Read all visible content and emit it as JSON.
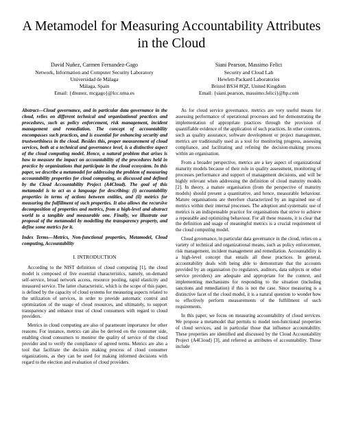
{
  "title": "A Metamodel for Measuring Accountability Attributes in the Cloud",
  "authors": {
    "left": {
      "names": "David Nuñez, Carmen Fernandez-Gago",
      "affiliation1": "Network, Information and Computer Security Laboratory",
      "affiliation2": "Universidad de Málaga",
      "location": "Málaga, Spain",
      "email": "Email: {dnunez, mcgago}@lcc.uma.es"
    },
    "right": {
      "names": "Siani Pearson, Massimo Felici",
      "affiliation1": "Security and Cloud Lab",
      "affiliation2": "Hewlett-Packard Laboratories",
      "location": "Bristol BS34 8QZ, United Kingdom",
      "email": "Email: {siani.pearson, massimo.felici}@hp.com"
    }
  },
  "abstract_label": "Abstract—",
  "abstract": "Cloud governance, and in particular data governance in the cloud, relies on different technical and organizational practices and procedures, such as policy enforcement, risk management, incident management and remediation. The concept of accountability encompasses such practices, and is essential for enhancing security and trustworthiness in the cloud. Besides this, proper measurement of cloud services, both at a technical and governance level, is a distinctive aspect of the cloud computing model. Hence, a natural problem that arises is how to measure the impact on accountability of the procedures held in practice by organizations that participate in the cloud ecosystem. In this paper, we describe a metamodel for addressing the problem of measuring accountability properties for cloud computing, as discussed and defined by the Cloud Accountability Project (A4Cloud). The goal of this metamodel is to act as a language for describing: (i) accountability properties in terms of actions between entities, and (ii) metrics for measuring the fulfillment of such properties. It also allows the recursive decomposition of properties and metrics, from a high-level and abstract world to a tangible and measurable one. Finally, we illustrate our proposal of the metamodel by modelling the transparency property, and define some metrics for it.",
  "index_terms_label": "Index Terms—",
  "index_terms": "Metrics, Non-functional properties, Metamodel, Cloud computing, Accountability",
  "section1_heading": "I.  INTRODUCTION",
  "left_p1": "According to the NIST definition of cloud computing [1], the cloud model is composed of five essential characteristics, namely, on-demand self-service, broad network access, resource pooling, rapid elasticity and measured service. The latter characteristic, which is the scope of this paper, is defined by the capacity of cloud systems for measuring aspects related to the utilization of services, in order to provide automatic control and optimization of the usage of cloud resources, and ultimately, to support transparency and enhance trust of cloud consumers with regard to cloud providers.",
  "left_p2": "Metrics in cloud computing are also of paramount importance for other reasons. For instance, metrics can also be derived on the consumer side, enabling cloud consumers to monitor the quality of service of the cloud provider and to verify the compliance of agreed terms. Metrics are also a tool that facilitate the decision making process of cloud consumer organizations, as they can be used for making informed decisions with regard to the election and evaluation of cloud providers.",
  "right_p1": "As for cloud service governance, metrics are very useful means for assessing performance of operational processes and for demonstrating the implementation of appropriate practices through the provision of quantifiable evidence of the application of such practices. In other contexts, such as quality assurance, software development or project management, metrics are traditionally used as a tool for monitoring progress, assessing compliance, and facilitating and refining the decision-making process within an organisation.",
  "right_p2": "From a broader perspective, metrics are a key aspect of organizational maturity models because of their role in quality assessment, monitoring of processes performance and support of management decisions, and will be highly relevant when addressing the definition of cloud maturity models [2]. In theory, a mature organisation (from the perspective of maturity models) should present a quantitative, and hence, measurable behaviour. Mature organisations are therefore characterized by an ingrained use of metrics within their internal processes. The adoption and systematic use of metrics is an indispensable practice for organisations that strive to achieve a repeatable and optimizing behaviour. For all these reasons, it is clear that the definition and usage of meaningful metrics is a crucial requirement of the cloud computing model.",
  "right_p3": "Cloud governance, in particular data governance in the cloud, relies on a variety of technical and organizational means, such as policy enforcement, risk management, incident management and remediation. Accountability is a high-level concept that entails all these practices. In general, accountability deals with being able to demonstrate that the accounts provided by an organisation (to regulators, auditors, data subjects or other service providers) are adequate and appropriate for the context, and implementing mechanisms for responding to the situation (including sanctions and remediation) if this is not the case. Since measuring is a distinctive facet of the cloud model, it is a natural question to wonder how to effectively perform measurements of the fulfillment of such requirements.",
  "right_p4": "In this paper, we focus on measuring accountability of cloud services. We propose a metamodel that permits to model non-functional properties of cloud services, and in particular those that influence accountability. These properties are identified and discussed by the Cloud Accountability Project (A4Cloud) [3], and referred as attributes of accountability. Those include"
}
